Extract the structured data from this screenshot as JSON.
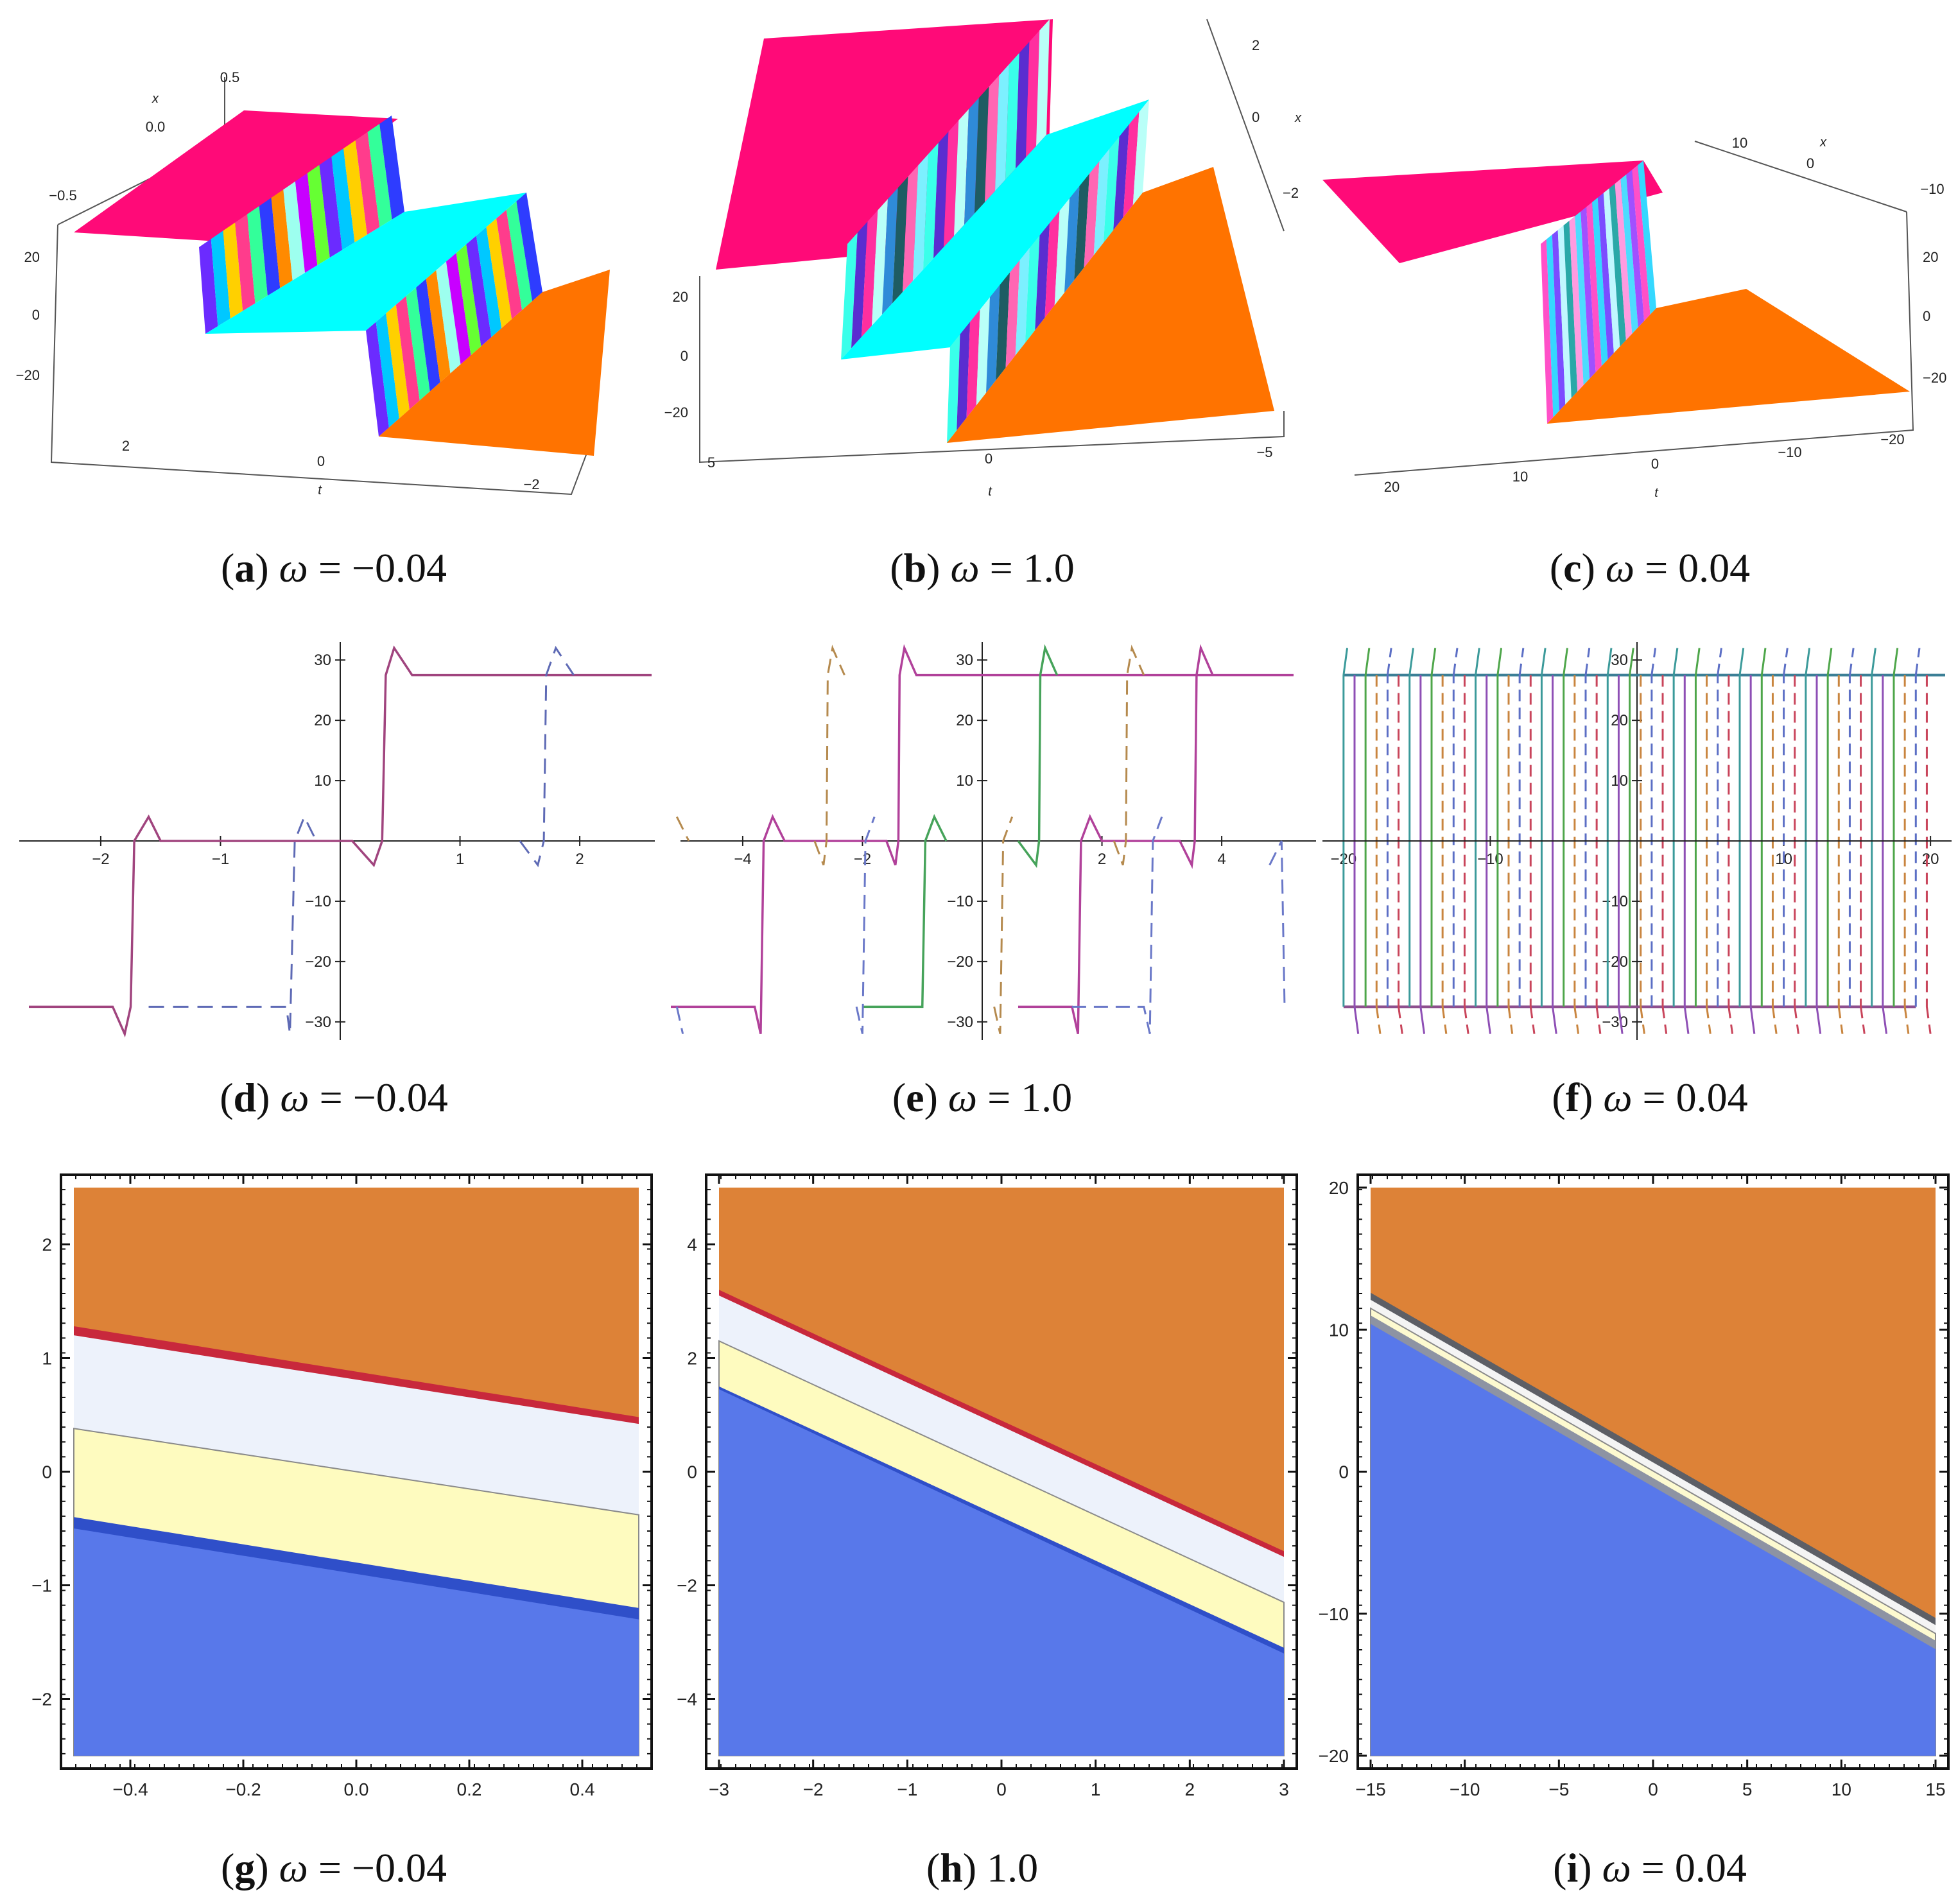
{
  "figure": {
    "panels3d": [
      {
        "id": "a",
        "letter": "a",
        "sym": "ω",
        "eq": " = −0.04",
        "omega": -0.04,
        "x_ticks": [
          "0.5",
          "0.0",
          "−0.5"
        ],
        "z_ticks": [
          "20",
          "0",
          "−20"
        ],
        "t_ticks": [
          "2",
          "0",
          "−2"
        ],
        "x_label": "x",
        "t_label": "t",
        "surface_colors": [
          "#ff0a78",
          "#00ffff",
          "#ff7300"
        ]
      },
      {
        "id": "b",
        "letter": "b",
        "sym": "ω",
        "eq": " = 1.0",
        "omega": 1.0,
        "x_ticks": [
          "2",
          "0",
          "−2"
        ],
        "z_ticks": [
          "20",
          "0",
          "−20"
        ],
        "t_ticks": [
          "5",
          "0",
          "−5"
        ],
        "x_label": "x",
        "t_label": "t",
        "surface_colors": [
          "#ff0a78",
          "#00ffff",
          "#ff7300"
        ]
      },
      {
        "id": "c",
        "letter": "c",
        "sym": "ω",
        "eq": " = 0.04",
        "omega": 0.04,
        "x_ticks": [
          "10",
          "0",
          "−10"
        ],
        "z_ticks": [
          "20",
          "0",
          "−20"
        ],
        "t_ticks": [
          "20",
          "10",
          "0",
          "−10",
          "−20"
        ],
        "x_label": "x",
        "t_label": "t",
        "surface_colors": [
          "#ff0a78",
          "#ff7300"
        ]
      }
    ],
    "panels2d": [
      {
        "id": "d",
        "letter": "d",
        "sym": "ω",
        "eq": " = −0.04",
        "omega": -0.04,
        "x_ticks": [
          "−2",
          "−1",
          "1",
          "2"
        ],
        "y_ticks": [
          "30",
          "20",
          "10",
          "−10",
          "−20",
          "−30"
        ]
      },
      {
        "id": "e",
        "letter": "e",
        "sym": "ω",
        "eq": " = 1.0",
        "omega": 1.0,
        "x_ticks": [
          "−4",
          "−2",
          "2",
          "4"
        ],
        "y_ticks": [
          "30",
          "20",
          "10",
          "−10",
          "−20",
          "−30"
        ]
      },
      {
        "id": "f",
        "letter": "f",
        "sym": "ω",
        "eq": " = 0.04",
        "omega": 0.04,
        "x_ticks": [
          "−20",
          "−10",
          "10",
          "20"
        ],
        "y_ticks": [
          "30",
          "20",
          "10",
          "−10",
          "−20",
          "−30"
        ]
      }
    ],
    "panelsContour": [
      {
        "id": "g",
        "letter": "g",
        "sym": "ω",
        "eq": " = −0.04",
        "omega": -0.04,
        "x_ticks": [
          "−0.4",
          "−0.2",
          "0.0",
          "0.2",
          "0.4"
        ],
        "y_ticks": [
          "2",
          "1",
          "0",
          "−1",
          "−2"
        ]
      },
      {
        "id": "h",
        "letter": "h",
        "sym": "",
        "eq": " 1.0",
        "omega": 1.0,
        "x_ticks": [
          "−3",
          "−2",
          "−1",
          "0",
          "1",
          "2",
          "3"
        ],
        "y_ticks": [
          "4",
          "2",
          "0",
          "−2",
          "−4"
        ]
      },
      {
        "id": "i",
        "letter": "i",
        "sym": "ω",
        "eq": " = 0.04",
        "omega": 0.04,
        "x_ticks": [
          "−15",
          "−10",
          "−5",
          "0",
          "5",
          "10",
          "15"
        ],
        "y_ticks": [
          "20",
          "10",
          "0",
          "−10",
          "−20"
        ]
      }
    ]
  },
  "chart_data": [
    {
      "type": "surface",
      "panel": "a",
      "caption": "(a) ω = −0.04",
      "xlabel": "t",
      "zlabel": "x",
      "t_range": [
        -2.5,
        2.5
      ],
      "x_range": [
        -0.5,
        0.5
      ],
      "z_range": [
        -30,
        30
      ],
      "plateaus": [
        27,
        0,
        -27
      ],
      "front_t": [
        -0.3,
        1.0
      ]
    },
    {
      "type": "surface",
      "panel": "b",
      "caption": "(b) ω = 1.0",
      "xlabel": "t",
      "zlabel": "x",
      "t_range": [
        -5,
        5
      ],
      "x_range": [
        -3,
        3
      ],
      "z_range": [
        -30,
        30
      ],
      "plateaus": [
        27,
        0,
        -27
      ],
      "front_t": [
        -0.5,
        1.5
      ]
    },
    {
      "type": "surface",
      "panel": "c",
      "caption": "(c) ω = 0.04",
      "xlabel": "t",
      "zlabel": "x",
      "t_range": [
        -20,
        20
      ],
      "x_range": [
        -15,
        15
      ],
      "z_range": [
        -30,
        30
      ],
      "plateaus": [
        27,
        -27
      ],
      "front_t": [
        6,
        10
      ]
    },
    {
      "type": "line",
      "panel": "d",
      "caption": "(d) ω = −0.04",
      "xlim": [
        -2.6,
        2.6
      ],
      "ylim": [
        -33,
        33
      ],
      "plateau": 27.5,
      "overshoot": 32,
      "series": [
        {
          "name": "solid",
          "color": "#a0447e",
          "dashed": false,
          "fronts": [
            -1.8,
            0.35
          ]
        },
        {
          "name": "dashed",
          "color": "#5e6ab5",
          "dashed": true,
          "fronts": [
            -0.4,
            1.7
          ]
        }
      ]
    },
    {
      "type": "line",
      "panel": "e",
      "caption": "(e) ω = 1.0",
      "xlim": [
        -5.2,
        5.2
      ],
      "ylim": [
        -33,
        33
      ],
      "plateau": 27.5,
      "overshoot": 32,
      "series": [
        {
          "name": "magenta",
          "color": "#b1419a",
          "dashed": false,
          "fronts": [
            -3.7,
            -1.4,
            1.6,
            3.6
          ]
        },
        {
          "name": "green",
          "color": "#46a35a",
          "dashed": false,
          "fronts": [
            -0.9,
            1.0
          ]
        },
        {
          "name": "tan",
          "color": "#b58a4e",
          "dashed": true,
          "fronts": [
            -2.6,
            2.4,
            -5.0
          ]
        },
        {
          "name": "blue",
          "color": "#6a78c8",
          "dashed": true,
          "fronts": [
            -2.0,
            2.9,
            5.0
          ]
        }
      ]
    },
    {
      "type": "line",
      "panel": "f",
      "caption": "(f) ω = 0.04",
      "xlim": [
        -21,
        21
      ],
      "ylim": [
        -33,
        33
      ],
      "plateau": 27.5,
      "overshoot": 32,
      "front_spacing": 1.5,
      "series": [
        {
          "name": "teal",
          "color": "#3b9a9a",
          "dashed": false
        },
        {
          "name": "purple",
          "color": "#8e4fb5",
          "dashed": false
        },
        {
          "name": "green",
          "color": "#4ea64a",
          "dashed": false
        },
        {
          "name": "orange",
          "color": "#c9853f",
          "dashed": true
        },
        {
          "name": "blue",
          "color": "#5c6fc5",
          "dashed": true
        },
        {
          "name": "red",
          "color": "#c9455b",
          "dashed": true
        }
      ]
    },
    {
      "type": "contour",
      "panel": "g",
      "caption": "(g) ω = −0.04",
      "xlim": [
        -0.5,
        0.5
      ],
      "ylim": [
        -2.5,
        2.5
      ],
      "bands": [
        {
          "name": "orange",
          "color": "#dd8237"
        },
        {
          "name": "red-fringe",
          "color": "#c8283c",
          "top_left": 1.28,
          "top_right": 0.48
        },
        {
          "name": "white",
          "color": "#edf2fb",
          "top_left": 1.2,
          "top_right": 0.42
        },
        {
          "name": "yellow",
          "color": "#fefbbf",
          "top_left": 0.38,
          "top_right": -0.38
        },
        {
          "name": "blue-fringe",
          "color": "#2f4fc9",
          "top_left": -0.4,
          "top_right": -1.2
        },
        {
          "name": "blue",
          "color": "#5878ea",
          "top_left": -0.5,
          "top_right": -1.3
        }
      ]
    },
    {
      "type": "contour",
      "panel": "h",
      "caption": "(h) 1.0",
      "xlim": [
        -3,
        3
      ],
      "ylim": [
        -5,
        5
      ],
      "bands": [
        {
          "name": "orange",
          "color": "#dd8237"
        },
        {
          "name": "red-fringe",
          "color": "#c8283c",
          "top_left": 3.2,
          "top_right": -1.4
        },
        {
          "name": "white",
          "color": "#edf2fb",
          "top_left": 3.1,
          "top_right": -1.5
        },
        {
          "name": "yellow",
          "color": "#fefbbf",
          "top_left": 2.3,
          "top_right": -2.3
        },
        {
          "name": "blue-fringe",
          "color": "#2f4fc9",
          "top_left": 1.5,
          "top_right": -3.1
        },
        {
          "name": "blue",
          "color": "#5878ea",
          "top_left": 1.45,
          "top_right": -3.2
        }
      ]
    },
    {
      "type": "contour",
      "panel": "i",
      "caption": "(i) ω = 0.04",
      "xlim": [
        -15,
        15
      ],
      "ylim": [
        -20,
        20
      ],
      "bands": [
        {
          "name": "orange",
          "color": "#dd8237"
        },
        {
          "name": "dark-fringe",
          "color": "#5d5f66",
          "top_left": 12.6,
          "top_right": -10.3
        },
        {
          "name": "white",
          "color": "#f4f4f4",
          "top_left": 12.1,
          "top_right": -10.8
        },
        {
          "name": "yellow",
          "color": "#fdfad0",
          "top_left": 11.5,
          "top_right": -11.4
        },
        {
          "name": "grey-fringe",
          "color": "#8d93a3",
          "top_left": 11.0,
          "top_right": -11.9
        },
        {
          "name": "blue",
          "color": "#5878ea",
          "top_left": 10.4,
          "top_right": -12.5
        }
      ]
    }
  ]
}
